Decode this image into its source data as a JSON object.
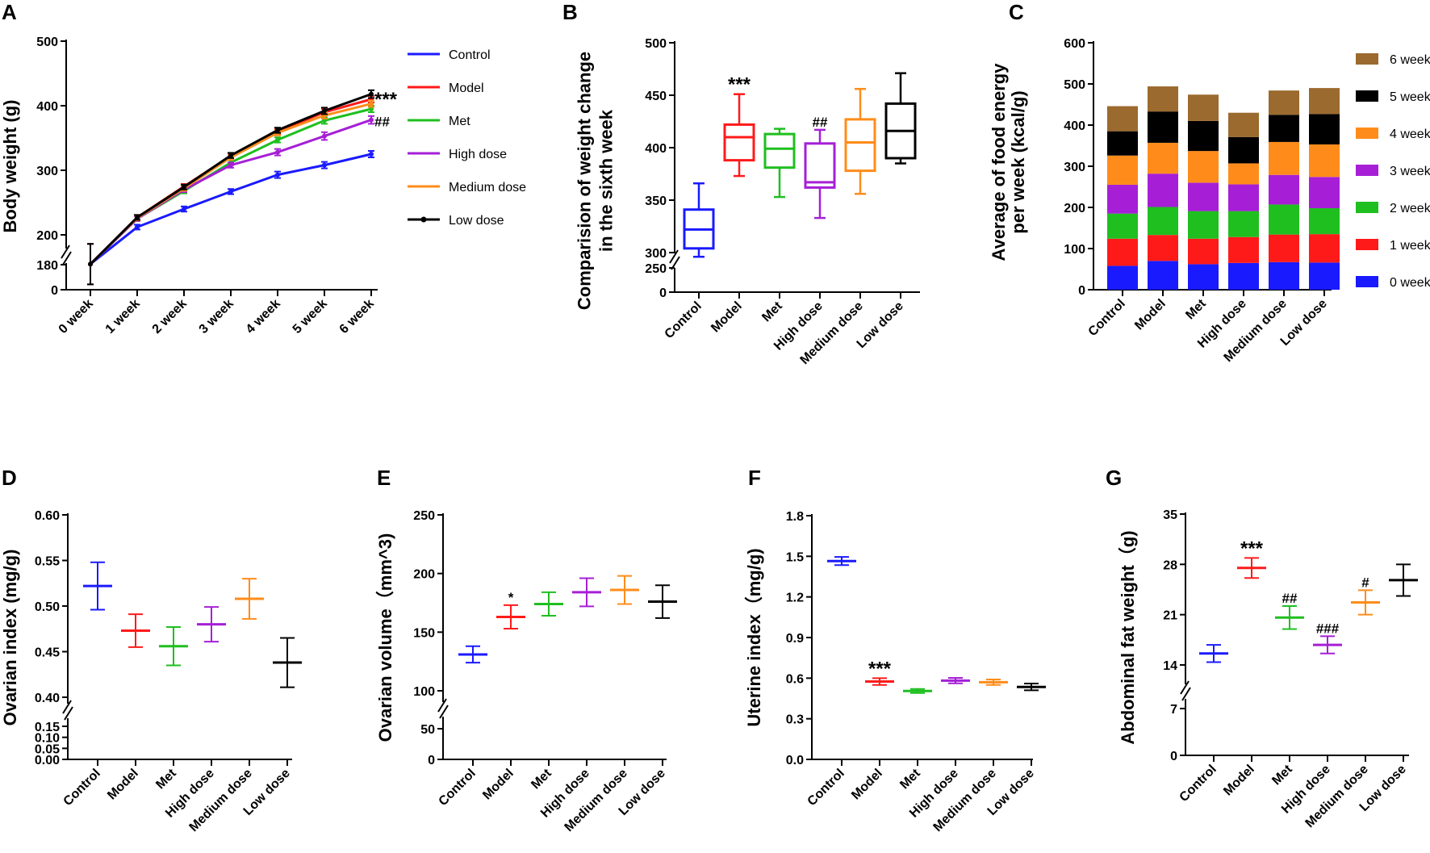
{
  "colors": {
    "Control": "#1a1aff",
    "Model": "#ff1a1a",
    "Met": "#1fbf1f",
    "High dose": "#a61fd6",
    "Medium dose": "#ff8c1a",
    "Low dose": "#000000"
  },
  "panels": {
    "A": {
      "label": "A"
    },
    "B": {
      "label": "B"
    },
    "C": {
      "label": "C"
    },
    "D": {
      "label": "D"
    },
    "E": {
      "label": "E"
    },
    "F": {
      "label": "F"
    },
    "G": {
      "label": "G"
    }
  },
  "chart_data": [
    {
      "id": "A",
      "type": "line",
      "ylabel": "Body weight (g)",
      "x": [
        "0 week",
        "1 week",
        "2 week",
        "3 week",
        "4 week",
        "5 week",
        "6 week"
      ],
      "axis_break": {
        "lower_ticks": [
          0,
          180
        ],
        "upper_ticks": [
          200,
          300,
          400,
          500
        ],
        "upper_range": [
          185,
          500
        ]
      },
      "series": [
        {
          "name": "Control",
          "values": [
            184,
            212,
            240,
            267,
            293,
            308,
            325
          ],
          "errors": [
            2,
            3,
            4,
            4,
            5,
            5,
            5
          ]
        },
        {
          "name": "Model",
          "values": [
            184,
            227,
            275,
            322,
            360,
            390,
            410
          ],
          "errors": [
            2,
            3,
            3,
            4,
            4,
            5,
            5
          ]
        },
        {
          "name": "Met",
          "values": [
            184,
            225,
            268,
            312,
            347,
            377,
            395
          ],
          "errors": [
            2,
            3,
            3,
            4,
            4,
            5,
            5
          ]
        },
        {
          "name": "High dose",
          "values": [
            184,
            225,
            270,
            308,
            328,
            353,
            378
          ],
          "errors": [
            2,
            3,
            3,
            4,
            5,
            6,
            6
          ]
        },
        {
          "name": "Medium dose",
          "values": [
            184,
            226,
            272,
            320,
            358,
            385,
            403
          ],
          "errors": [
            2,
            3,
            3,
            4,
            4,
            5,
            5
          ]
        },
        {
          "name": "Low dose",
          "values": [
            184,
            227,
            274,
            323,
            362,
            392,
            418
          ],
          "errors": [
            2,
            3,
            3,
            4,
            4,
            5,
            6
          ]
        }
      ],
      "annotations": [
        {
          "text": "***",
          "series": "Model"
        },
        {
          "text": "##",
          "series": "High dose"
        }
      ],
      "legend_position": "right"
    },
    {
      "id": "B",
      "type": "box",
      "ylabel": "Comparision of weight change in the sixth week",
      "ylabel_lines": [
        "Comparision of weight change",
        "in the sixth week"
      ],
      "categories": [
        "Control",
        "Model",
        "Met",
        "High dose",
        "Medium dose",
        "Low dose"
      ],
      "axis_break": {
        "lower_ticks": [
          0,
          250
        ],
        "upper_ticks": [
          300,
          350,
          400,
          450,
          500
        ],
        "upper_range": [
          280,
          500
        ]
      },
      "boxes": [
        {
          "min": 296,
          "q1": 304,
          "median": 322,
          "q3": 341,
          "max": 366
        },
        {
          "min": 373,
          "q1": 388,
          "median": 410,
          "q3": 422,
          "max": 451
        },
        {
          "min": 353,
          "q1": 381,
          "median": 399,
          "q3": 413,
          "max": 418
        },
        {
          "min": 333,
          "q1": 362,
          "median": 367,
          "q3": 404,
          "max": 417
        },
        {
          "min": 356,
          "q1": 378,
          "median": 405,
          "q3": 427,
          "max": 456
        },
        {
          "min": 385,
          "q1": 390,
          "median": 416,
          "q3": 442,
          "max": 471
        }
      ],
      "annotations": [
        {
          "category": "Model",
          "text": "***"
        },
        {
          "category": "High dose",
          "text": "##"
        }
      ]
    },
    {
      "id": "C",
      "type": "bar",
      "stacked": true,
      "ylabel": "Average of food energy per week (kcal/g)",
      "ylabel_lines": [
        "Average of food energy",
        "per week (kcal/g)"
      ],
      "categories": [
        "Control",
        "Model",
        "Met",
        "High dose",
        "Medium dose",
        "Low dose"
      ],
      "yticks": [
        0,
        100,
        200,
        300,
        400,
        500,
        600
      ],
      "ylim": [
        0,
        600
      ],
      "series": [
        {
          "name": "0 week",
          "color": "#1a1aff",
          "values": [
            58,
            70,
            62,
            65,
            67,
            66
          ]
        },
        {
          "name": "1 week",
          "color": "#ff1a1a",
          "values": [
            66,
            63,
            62,
            63,
            67,
            69
          ]
        },
        {
          "name": "2 week",
          "color": "#1fbf1f",
          "values": [
            61,
            68,
            67,
            63,
            73,
            63
          ]
        },
        {
          "name": "3 week",
          "color": "#a61fd6",
          "values": [
            70,
            81,
            69,
            65,
            72,
            76
          ]
        },
        {
          "name": "4 week",
          "color": "#ff8c1a",
          "values": [
            71,
            75,
            77,
            51,
            80,
            79
          ]
        },
        {
          "name": "5 week",
          "color": "#000000",
          "values": [
            59,
            76,
            73,
            64,
            66,
            74
          ]
        },
        {
          "name": "6 week",
          "color": "#9b6a2e",
          "values": [
            61,
            61,
            64,
            59,
            59,
            63
          ]
        }
      ],
      "legend_order": [
        "6 week",
        "5 week",
        "4 week",
        "3 week",
        "2 week",
        "1 week",
        "0 week"
      ]
    },
    {
      "id": "D",
      "type": "scatter",
      "ylabel": "Ovarian index (mg/g)",
      "categories": [
        "Control",
        "Model",
        "Met",
        "High dose",
        "Medium dose",
        "Low dose"
      ],
      "axis_break": {
        "lower_ticks": [
          "0.00",
          "0.05",
          "0.10",
          "0.15"
        ],
        "upper_ticks": [
          "0.40",
          "0.45",
          "0.50",
          "0.55",
          "0.60"
        ]
      },
      "means": [
        0.522,
        0.473,
        0.456,
        0.48,
        0.508,
        0.438
      ],
      "errors": [
        0.026,
        0.018,
        0.021,
        0.019,
        0.022,
        0.027
      ],
      "annotations": []
    },
    {
      "id": "E",
      "type": "scatter",
      "ylabel": "Ovarian volume（mm^3)",
      "categories": [
        "Control",
        "Model",
        "Met",
        "High dose",
        "Medium dose",
        "Low dose"
      ],
      "axis_break": {
        "lower_ticks": [
          0,
          50
        ],
        "upper_ticks": [
          100,
          150,
          200,
          250
        ]
      },
      "means": [
        131,
        163,
        174,
        184,
        186,
        176
      ],
      "errors": [
        7,
        10,
        10,
        12,
        12,
        14
      ],
      "annotations": [
        {
          "category": "Model",
          "text": "*"
        }
      ]
    },
    {
      "id": "F",
      "type": "scatter",
      "ylabel": "Uterine index（mg/g)",
      "categories": [
        "Control",
        "Model",
        "Met",
        "High dose",
        "Medium dose",
        "Low dose"
      ],
      "yticks": [
        "0.0",
        "0.3",
        "0.6",
        "0.9",
        "1.2",
        "1.5",
        "1.8"
      ],
      "ylim": [
        0,
        1.8
      ],
      "means": [
        1.465,
        0.575,
        0.505,
        0.582,
        0.57,
        0.535
      ],
      "errors": [
        0.03,
        0.025,
        0.015,
        0.02,
        0.02,
        0.025
      ],
      "annotations": [
        {
          "category": "Model",
          "text": "***"
        }
      ]
    },
    {
      "id": "G",
      "type": "scatter",
      "ylabel": "Abdominal fat weight（g)",
      "categories": [
        "Control",
        "Model",
        "Met",
        "High dose",
        "Medium dose",
        "Low dose"
      ],
      "axis_break": {
        "lower_ticks": [
          0,
          7
        ],
        "upper_ticks": [
          14,
          21,
          28,
          35
        ]
      },
      "means": [
        15.6,
        27.5,
        20.6,
        16.8,
        22.7,
        25.8
      ],
      "errors": [
        1.2,
        1.4,
        1.6,
        1.2,
        1.7,
        2.2
      ],
      "annotations": [
        {
          "category": "Model",
          "text": "***"
        },
        {
          "category": "Met",
          "text": "##"
        },
        {
          "category": "High dose",
          "text": "###"
        },
        {
          "category": "Medium dose",
          "text": "#"
        }
      ]
    }
  ]
}
